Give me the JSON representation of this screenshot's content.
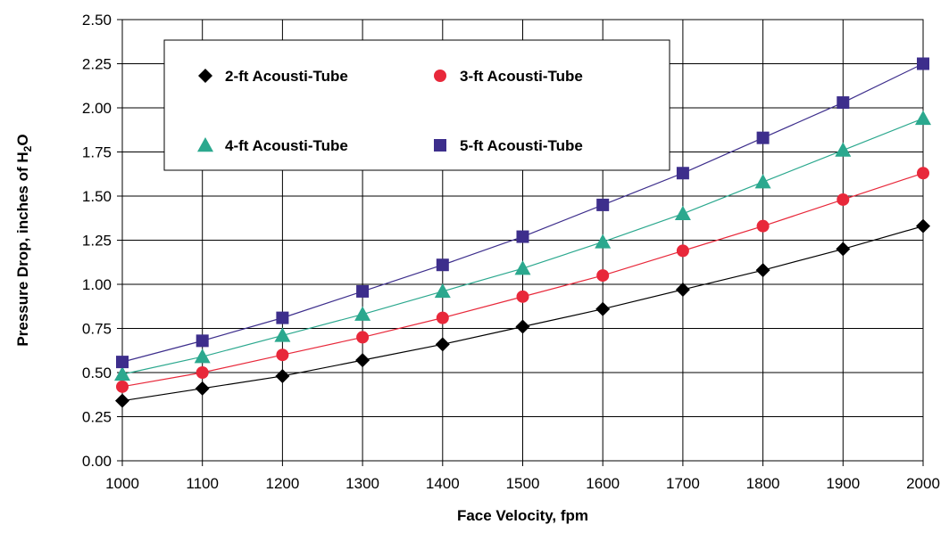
{
  "chart_data": {
    "type": "line",
    "xlabel": "Face Velocity, fpm",
    "ylabel": {
      "prefix": "Pressure Drop, inches of H",
      "subscript": "2",
      "suffix": "O"
    },
    "xlim": [
      1000,
      2000
    ],
    "ylim": [
      0,
      2.5
    ],
    "x_ticks": [
      "1000",
      "1100",
      "1200",
      "1300",
      "1400",
      "1500",
      "1600",
      "1700",
      "1800",
      "1900",
      "2000"
    ],
    "y_ticks": [
      "0.00",
      "0.25",
      "0.50",
      "0.75",
      "1.00",
      "1.25",
      "1.50",
      "1.75",
      "2.00",
      "2.25",
      "2.50"
    ],
    "grid": true,
    "legend_position": "top-left",
    "x": [
      1000,
      1100,
      1200,
      1300,
      1400,
      1500,
      1600,
      1700,
      1800,
      1900,
      2000
    ],
    "series": [
      {
        "name": "2-ft Acousti-Tube",
        "marker": "diamond",
        "color": "#000000",
        "values": [
          0.34,
          0.41,
          0.48,
          0.57,
          0.66,
          0.76,
          0.86,
          0.97,
          1.08,
          1.2,
          1.33
        ]
      },
      {
        "name": "3-ft Acousti-Tube",
        "marker": "circle",
        "color": "#e8283a",
        "values": [
          0.42,
          0.5,
          0.6,
          0.7,
          0.81,
          0.93,
          1.05,
          1.19,
          1.33,
          1.48,
          1.63
        ]
      },
      {
        "name": "4-ft Acousti-Tube",
        "marker": "triangle",
        "color": "#2ba88e",
        "values": [
          0.49,
          0.59,
          0.71,
          0.83,
          0.96,
          1.09,
          1.24,
          1.4,
          1.58,
          1.76,
          1.94
        ]
      },
      {
        "name": "5-ft Acousti-Tube",
        "marker": "square",
        "color": "#3d2e8c",
        "values": [
          0.56,
          0.68,
          0.81,
          0.96,
          1.11,
          1.27,
          1.45,
          1.63,
          1.83,
          2.03,
          2.25
        ]
      }
    ]
  }
}
